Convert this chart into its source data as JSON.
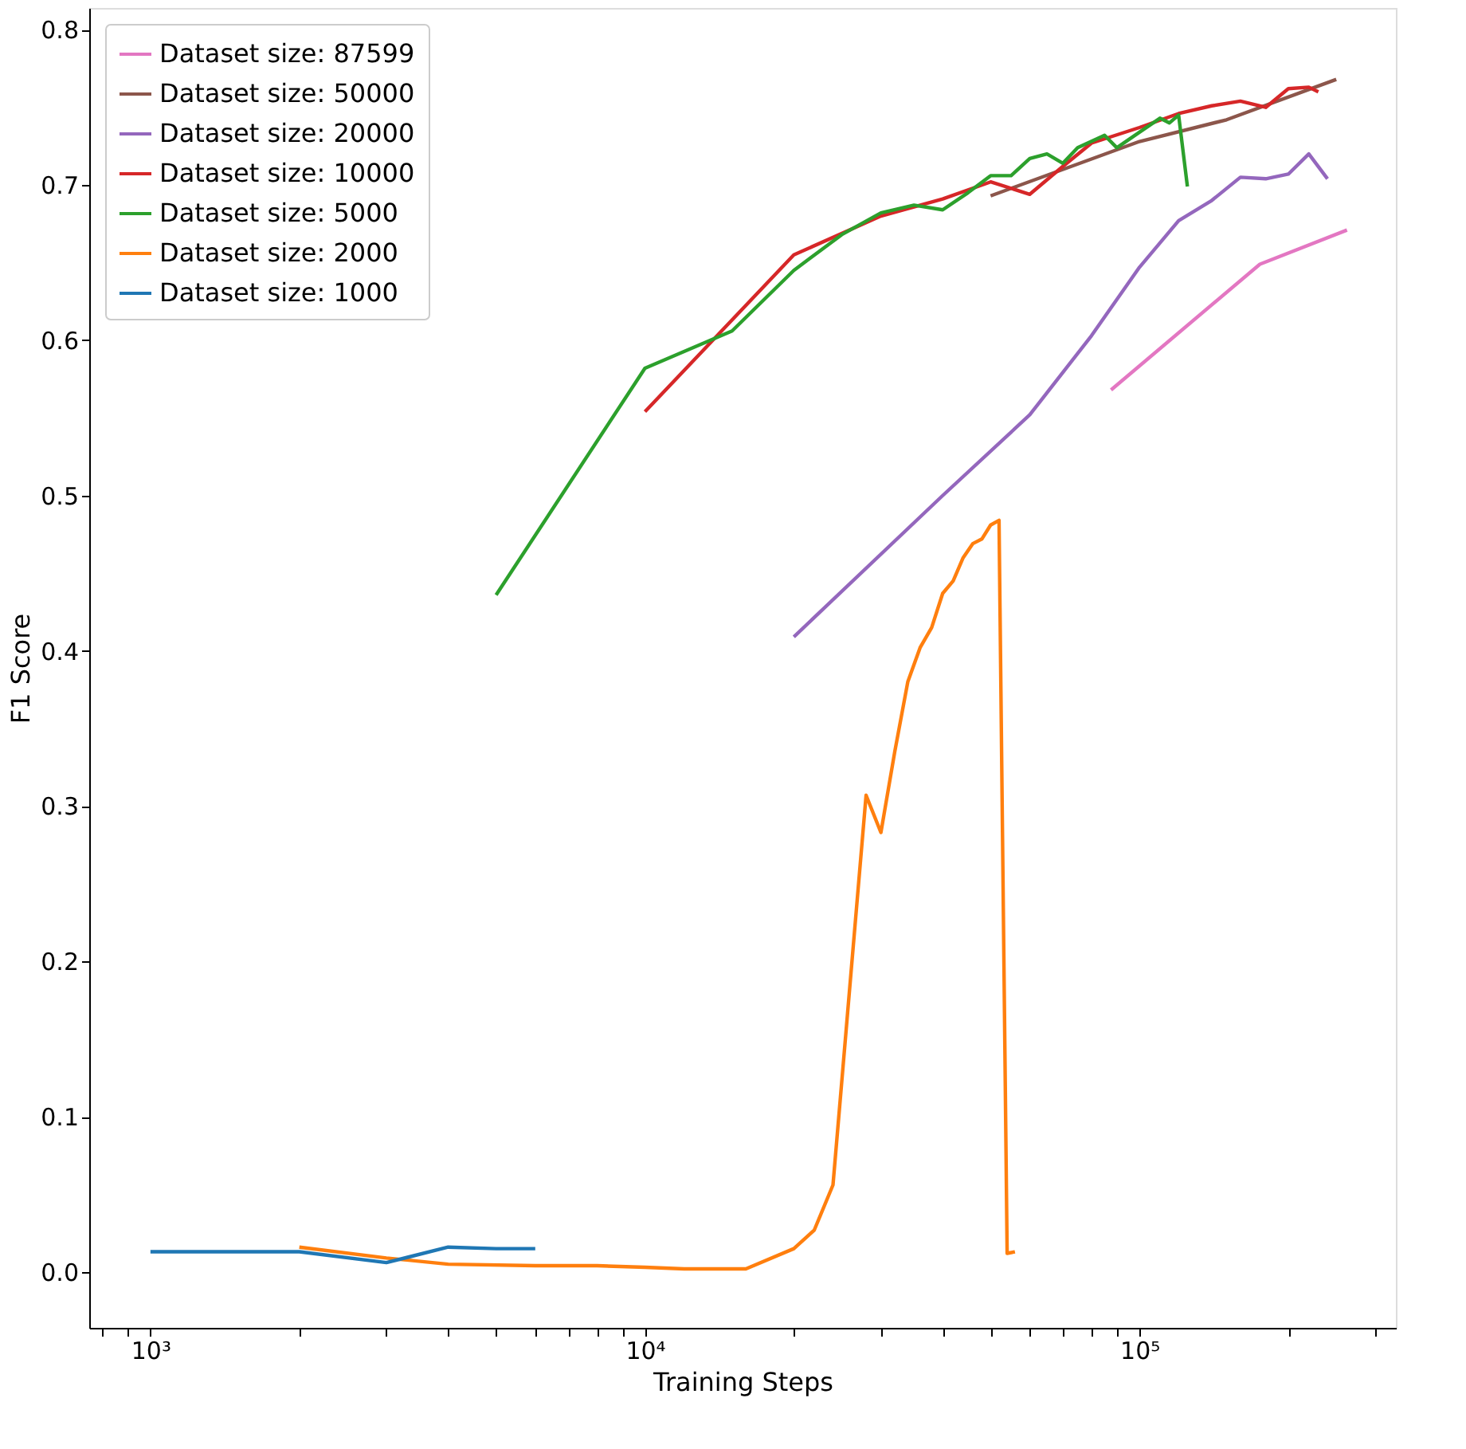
{
  "chart_data": {
    "type": "line",
    "xlabel": "Training Steps",
    "ylabel": "F1 Score",
    "log": "x",
    "grid": false,
    "legend": "top left",
    "marker": "none",
    "line_style": "solid",
    "xlim": [
      752,
      330000
    ],
    "ylim": [
      -0.036,
      0.814
    ],
    "xticks": [
      {
        "value": 800,
        "label": null
      },
      {
        "value": 900,
        "label": null
      },
      {
        "value": 1000,
        "label": "10³"
      },
      {
        "value": 2000,
        "label": null
      },
      {
        "value": 3000,
        "label": null
      },
      {
        "value": 4000,
        "label": null
      },
      {
        "value": 5000,
        "label": null
      },
      {
        "value": 6000,
        "label": null
      },
      {
        "value": 7000,
        "label": null
      },
      {
        "value": 8000,
        "label": null
      },
      {
        "value": 9000,
        "label": null
      },
      {
        "value": 10000,
        "label": "10⁴"
      },
      {
        "value": 20000,
        "label": null
      },
      {
        "value": 30000,
        "label": null
      },
      {
        "value": 40000,
        "label": null
      },
      {
        "value": 50000,
        "label": null
      },
      {
        "value": 60000,
        "label": null
      },
      {
        "value": 70000,
        "label": null
      },
      {
        "value": 80000,
        "label": null
      },
      {
        "value": 90000,
        "label": null
      },
      {
        "value": 100000,
        "label": "10⁵"
      },
      {
        "value": 200000,
        "label": null
      },
      {
        "value": 300000,
        "label": null
      }
    ],
    "yticks": [
      {
        "value": 0,
        "label": "0.0"
      },
      {
        "value": 0.1,
        "label": "0.1"
      },
      {
        "value": 0.2,
        "label": "0.2"
      },
      {
        "value": 0.3,
        "label": "0.3"
      },
      {
        "value": 0.4,
        "label": "0.4"
      },
      {
        "value": 0.5,
        "label": "0.5"
      },
      {
        "value": 0.6,
        "label": "0.6"
      },
      {
        "value": 0.7,
        "label": "0.7"
      },
      {
        "value": 0.8,
        "label": "0.8"
      }
    ],
    "series": [
      {
        "name": "Dataset size: 87599",
        "color": "#e377c2",
        "x": [
          87599,
          175198,
          262797
        ],
        "values": [
          0.568,
          0.649,
          0.671
        ]
      },
      {
        "name": "Dataset size: 50000",
        "color": "#8c564b",
        "x": [
          50000,
          100000,
          150000,
          250000
        ],
        "values": [
          0.693,
          0.728,
          0.742,
          0.768
        ]
      },
      {
        "name": "Dataset size: 20000",
        "color": "#9467bd",
        "x": [
          20000,
          40000,
          60000,
          80000,
          100000,
          120000,
          140000,
          160000,
          180000,
          200000,
          220000,
          240000
        ],
        "values": [
          0.409,
          0.5,
          0.552,
          0.603,
          0.647,
          0.677,
          0.69,
          0.705,
          0.704,
          0.707,
          0.72,
          0.704
        ]
      },
      {
        "name": "Dataset size: 10000",
        "color": "#d62728",
        "x": [
          10000,
          20000,
          30000,
          40000,
          50000,
          60000,
          70000,
          80000,
          100000,
          120000,
          140000,
          160000,
          180000,
          200000,
          220000,
          230000
        ],
        "values": [
          0.554,
          0.655,
          0.68,
          0.691,
          0.702,
          0.694,
          0.712,
          0.727,
          0.737,
          0.746,
          0.751,
          0.754,
          0.75,
          0.762,
          0.763,
          0.76
        ]
      },
      {
        "name": "Dataset size: 5000",
        "color": "#2ca02c",
        "x": [
          5000,
          10000,
          15000,
          20000,
          25000,
          30000,
          35000,
          40000,
          45000,
          50000,
          55000,
          60000,
          65000,
          70000,
          75000,
          85000,
          90000,
          100000,
          110000,
          115000,
          120000,
          125000
        ],
        "values": [
          0.436,
          0.582,
          0.606,
          0.645,
          0.668,
          0.682,
          0.687,
          0.684,
          0.695,
          0.706,
          0.706,
          0.717,
          0.72,
          0.714,
          0.724,
          0.732,
          0.724,
          0.734,
          0.743,
          0.74,
          0.745,
          0.699
        ]
      },
      {
        "name": "Dataset size: 2000",
        "color": "#ff7f0e",
        "x": [
          2000,
          3000,
          4000,
          6000,
          8000,
          10000,
          12000,
          14000,
          16000,
          20000,
          22000,
          24000,
          28000,
          30000,
          32000,
          34000,
          36000,
          38000,
          40000,
          42000,
          44000,
          46000,
          48000,
          50000,
          52000,
          54000,
          56000
        ],
        "values": [
          0.016,
          0.009,
          0.005,
          0.004,
          0.004,
          0.003,
          0.002,
          0.002,
          0.002,
          0.015,
          0.027,
          0.056,
          0.307,
          0.283,
          0.335,
          0.38,
          0.402,
          0.415,
          0.437,
          0.445,
          0.46,
          0.469,
          0.472,
          0.481,
          0.484,
          0.012,
          0.013
        ]
      },
      {
        "name": "Dataset size: 1000",
        "color": "#1f77b4",
        "x": [
          1000,
          2000,
          3000,
          4000,
          5000,
          6000
        ],
        "values": [
          0.013,
          0.013,
          0.006,
          0.016,
          0.015,
          0.015
        ]
      }
    ]
  }
}
